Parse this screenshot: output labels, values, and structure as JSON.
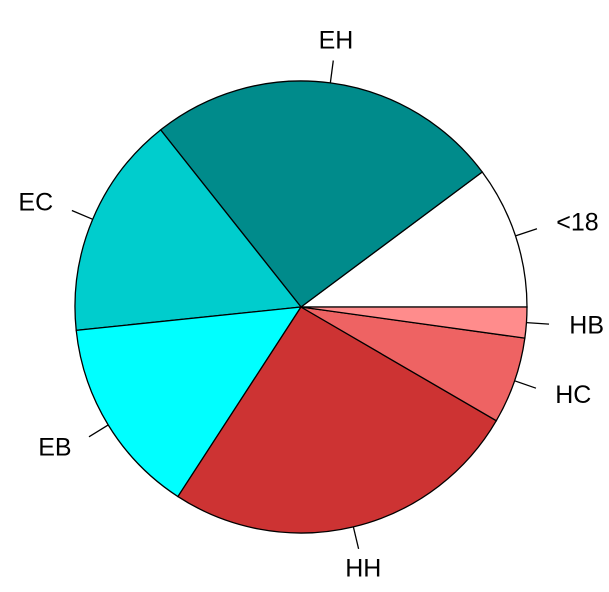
{
  "chart_data": {
    "type": "pie",
    "labels": [
      "<18",
      "EH",
      "EC",
      "EB",
      "HH",
      "HC",
      "HB"
    ],
    "values": [
      10.2,
      25.5,
      16.0,
      14.2,
      25.8,
      6.2,
      2.2
    ],
    "colors": [
      "#FFFFFF",
      "#008B8B",
      "#00CDCD",
      "#00FFFF",
      "#CD3333",
      "#EE6363",
      "#FF8C8C"
    ],
    "start_angle_deg": 0,
    "direction": "counterclockwise"
  }
}
